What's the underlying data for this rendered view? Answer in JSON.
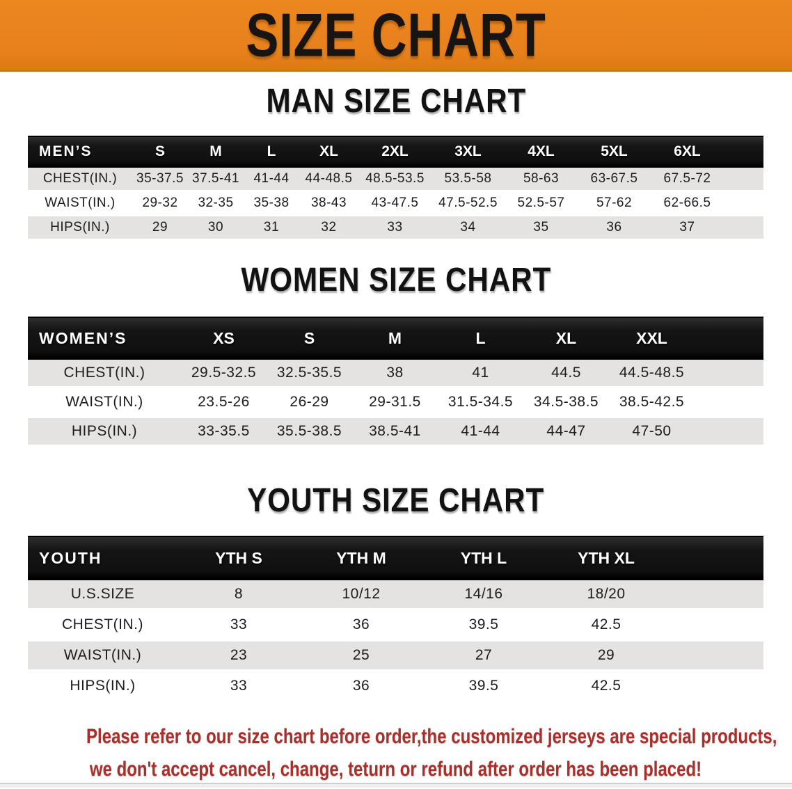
{
  "banner": {
    "title": "SIZE CHART",
    "bg_color": "#e8811c",
    "text_color": "#181411"
  },
  "colors": {
    "header_black": "#141414",
    "row_gray": "#e4e3e1",
    "row_white": "#ffffff",
    "disclaimer_red": "#a92f2b"
  },
  "sections": [
    {
      "title": "MAN SIZE CHART",
      "table": {
        "corner_label": "MEN’S",
        "columns": [
          "S",
          "M",
          "L",
          "XL",
          "2XL",
          "3XL",
          "4XL",
          "5XL",
          "6XL"
        ],
        "rows": [
          {
            "label": "CHEST(IN.)",
            "values": [
              "35-37.5",
              "37.5-41",
              "41-44",
              "44-48.5",
              "48.5-53.5",
              "53.5-58",
              "58-63",
              "63-67.5",
              "67.5-72"
            ]
          },
          {
            "label": "WAIST(IN.)",
            "values": [
              "29-32",
              "32-35",
              "35-38",
              "38-43",
              "43-47.5",
              "47.5-52.5",
              "52.5-57",
              "57-62",
              "62-66.5"
            ]
          },
          {
            "label": "HIPS(IN.)",
            "values": [
              "29",
              "30",
              "31",
              "32",
              "33",
              "34",
              "35",
              "36",
              "37"
            ]
          }
        ]
      }
    },
    {
      "title": "WOMEN SIZE CHART",
      "table": {
        "corner_label": "WOMEN’S",
        "columns": [
          "XS",
          "S",
          "M",
          "L",
          "XL",
          "XXL"
        ],
        "rows": [
          {
            "label": "CHEST(IN.)",
            "values": [
              "29.5-32.5",
              "32.5-35.5",
              "38",
              "41",
              "44.5",
              "44.5-48.5"
            ]
          },
          {
            "label": "WAIST(IN.)",
            "values": [
              "23.5-26",
              "26-29",
              "29-31.5",
              "31.5-34.5",
              "34.5-38.5",
              "38.5-42.5"
            ]
          },
          {
            "label": "HIPS(IN.)",
            "values": [
              "33-35.5",
              "35.5-38.5",
              "38.5-41",
              "41-44",
              "44-47",
              "47-50"
            ]
          }
        ]
      }
    },
    {
      "title": "YOUTH SIZE CHART",
      "table": {
        "corner_label": "YOUTH",
        "columns": [
          "YTH S",
          "YTH M",
          "YTH L",
          "YTH XL"
        ],
        "rows": [
          {
            "label": "U.S.SIZE",
            "values": [
              "8",
              "10/12",
              "14/16",
              "18/20"
            ]
          },
          {
            "label": "CHEST(IN.)",
            "values": [
              "33",
              "36",
              "39.5",
              "42.5"
            ]
          },
          {
            "label": "WAIST(IN.)",
            "values": [
              "23",
              "25",
              "27",
              "29"
            ]
          },
          {
            "label": "HIPS(IN.)",
            "values": [
              "33",
              "36",
              "39.5",
              "42.5"
            ]
          }
        ]
      }
    }
  ],
  "disclaimer": {
    "lines": [
      "Please refer to our size chart before order,the customized jerseys are special products,",
      "we don't accept cancel, change, teturn or refund after order has been placed!"
    ]
  }
}
